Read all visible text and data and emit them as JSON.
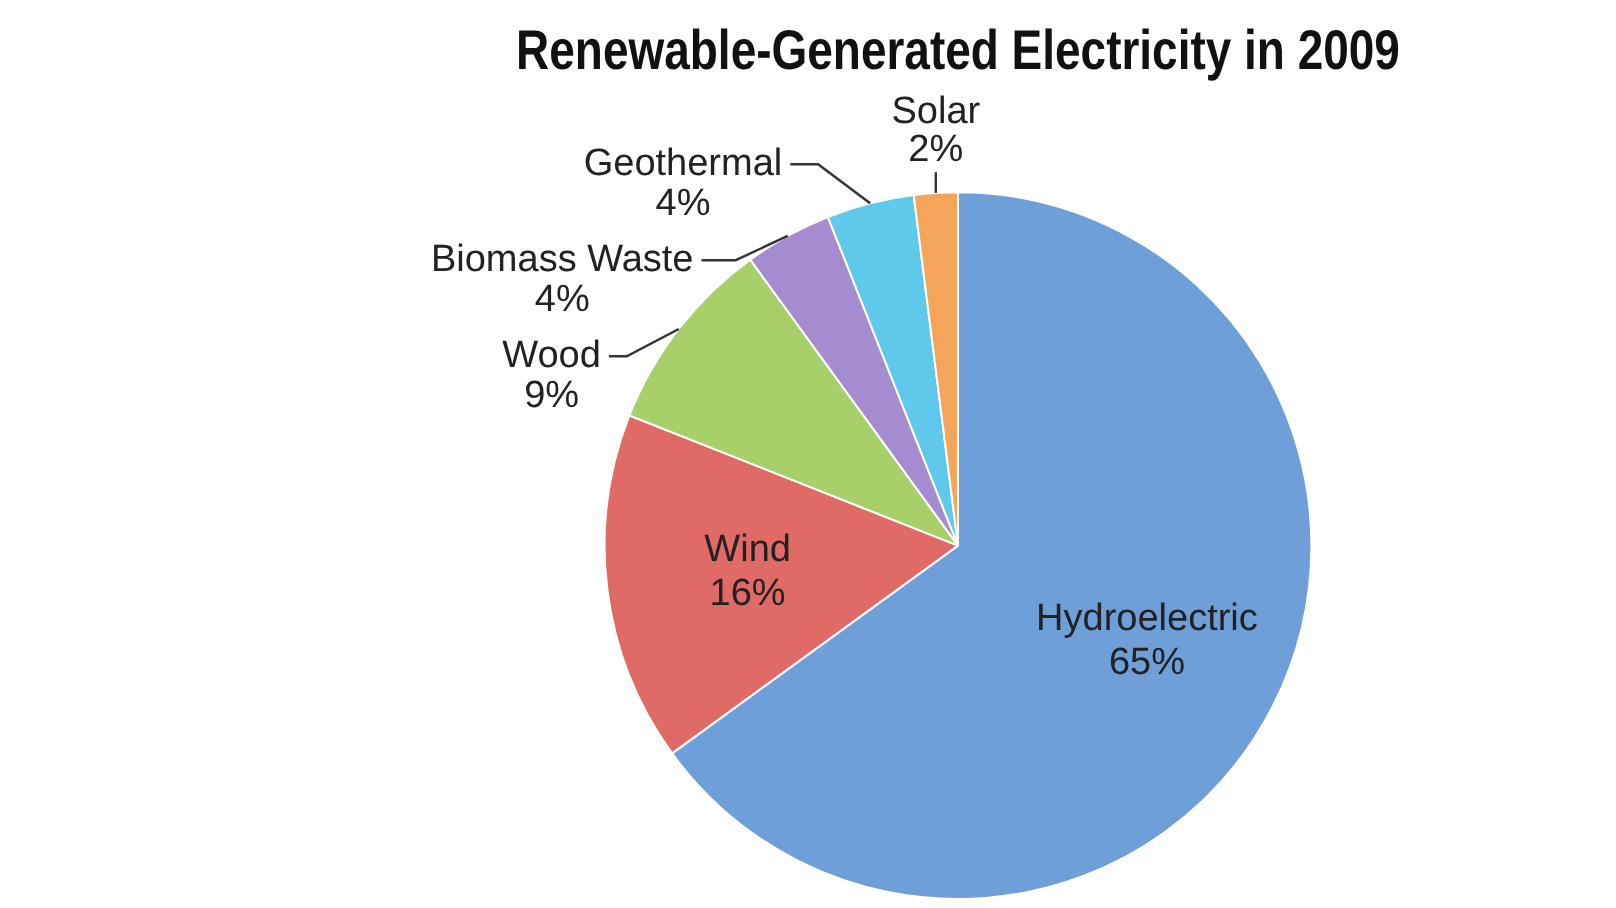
{
  "chart_data": {
    "type": "pie",
    "title": "Renewable-Generated Electricity in 2009",
    "categories": [
      "Hydroelectric",
      "Wind",
      "Wood",
      "Biomass Waste",
      "Geothermal",
      "Solar"
    ],
    "values": [
      65,
      16,
      9,
      4,
      4,
      2
    ],
    "value_labels": [
      "65%",
      "16%",
      "9%",
      "4%",
      "4%",
      "2%"
    ],
    "colors": [
      "#6f9fd8",
      "#e06a66",
      "#a7cf6a",
      "#a58bd0",
      "#5fc9ec",
      "#f5a55a"
    ],
    "legend": false
  }
}
